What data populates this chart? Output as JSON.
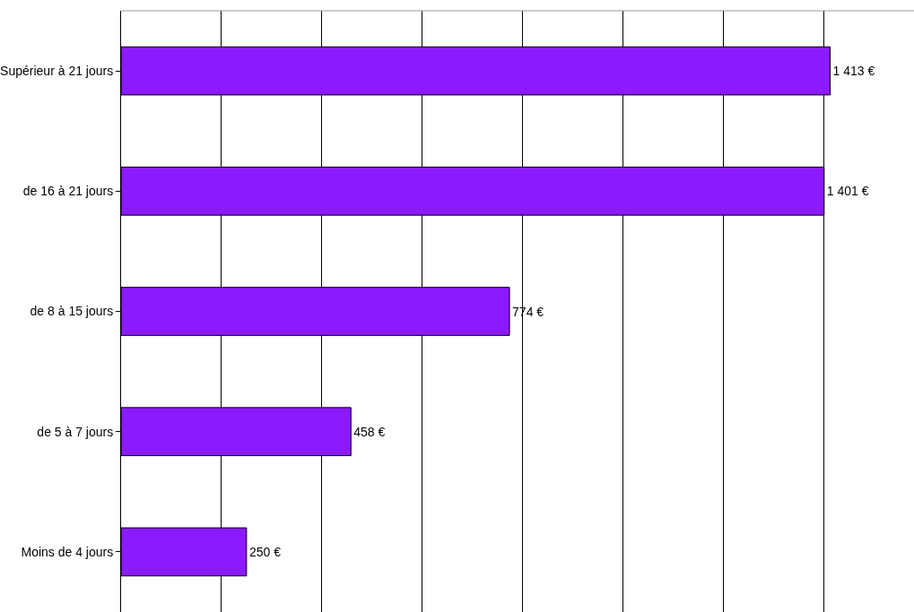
{
  "chart_data": {
    "type": "bar",
    "orientation": "horizontal",
    "categories": [
      "Supérieur à 21 jours",
      "de 16 à 21 jours",
      "de 8 à 15 jours",
      "de 5 à 7 jours",
      "Moins de 4 jours"
    ],
    "values": [
      1413,
      1401,
      774,
      458,
      250
    ],
    "value_labels": [
      "1 413 €",
      "1 401 €",
      "774 €",
      "458 €",
      "250 €"
    ],
    "color": "#8b1aff",
    "xlim": [
      0,
      1580
    ],
    "xticks": [
      {
        "value": 0,
        "label": null
      },
      {
        "value": 200,
        "label": null
      },
      {
        "value": 400,
        "label": null
      },
      {
        "value": 600,
        "label": null
      },
      {
        "value": 800,
        "label": null
      },
      {
        "value": 1000,
        "label": null
      },
      {
        "value": 1200,
        "label": null
      },
      {
        "value": 1400,
        "label": null
      }
    ],
    "tick_labels": "y",
    "grid": "x"
  }
}
